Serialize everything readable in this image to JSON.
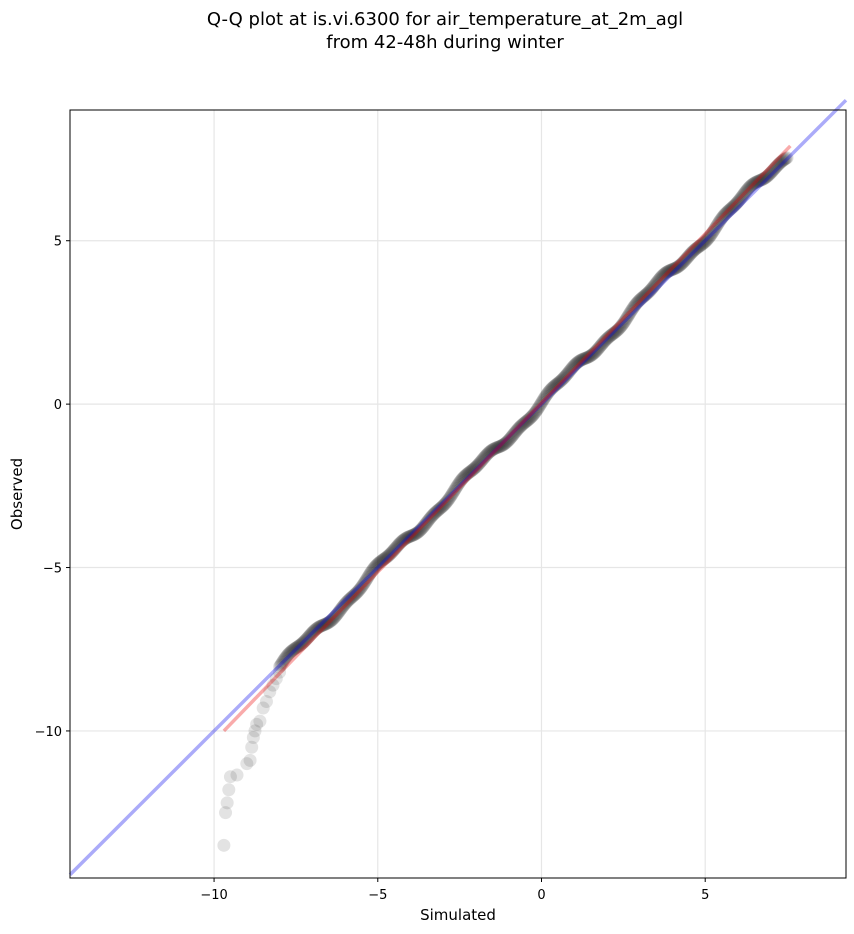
{
  "chart_data": {
    "type": "scatter",
    "title_line1": "Q-Q plot at is.vi.6300 for air_temperature_at_2m_agl",
    "title_line2": "from 42-48h during winter",
    "xlabel": "Simulated",
    "ylabel": "Observed",
    "xlim": [
      -14.4,
      9.3
    ],
    "ylim": [
      -14.5,
      9.0
    ],
    "x_ticks": [
      {
        "value": -10,
        "label": "−10"
      },
      {
        "value": -5,
        "label": "−5"
      },
      {
        "value": 0,
        "label": "0"
      },
      {
        "value": 5,
        "label": "5"
      }
    ],
    "y_ticks": [
      {
        "value": 5,
        "label": "5"
      },
      {
        "value": 0,
        "label": "0"
      },
      {
        "value": -5,
        "label": "−5"
      },
      {
        "value": -10,
        "label": "−10"
      }
    ],
    "grid": true,
    "identity_line": {
      "from": [
        -14.4,
        -14.4
      ],
      "to": [
        9.3,
        9.3
      ],
      "color": "#0000ee",
      "opacity": 0.33
    },
    "fit_line": {
      "from": [
        -9.7,
        -10.0
      ],
      "to": [
        7.6,
        7.9
      ],
      "color": "#ee0000",
      "opacity": 0.33
    },
    "points_color": "#1a1a1a",
    "points_opacity": 0.12,
    "tail_points": [
      [
        -9.7,
        -13.5
      ],
      [
        -9.65,
        -12.5
      ],
      [
        -9.6,
        -12.2
      ],
      [
        -9.55,
        -11.8
      ],
      [
        -9.5,
        -11.4
      ],
      [
        -9.3,
        -11.35
      ],
      [
        -9.0,
        -11.0
      ],
      [
        -8.9,
        -10.9
      ],
      [
        -8.85,
        -10.5
      ],
      [
        -8.8,
        -10.2
      ],
      [
        -8.75,
        -10.0
      ],
      [
        -8.7,
        -9.8
      ],
      [
        -8.6,
        -9.7
      ],
      [
        -8.5,
        -9.3
      ],
      [
        -8.4,
        -9.1
      ],
      [
        -8.3,
        -8.8
      ],
      [
        -8.2,
        -8.6
      ],
      [
        -8.1,
        -8.4
      ],
      [
        -8.0,
        -8.2
      ]
    ],
    "main_range": [
      -8.0,
      7.5
    ],
    "main_count": 560
  }
}
